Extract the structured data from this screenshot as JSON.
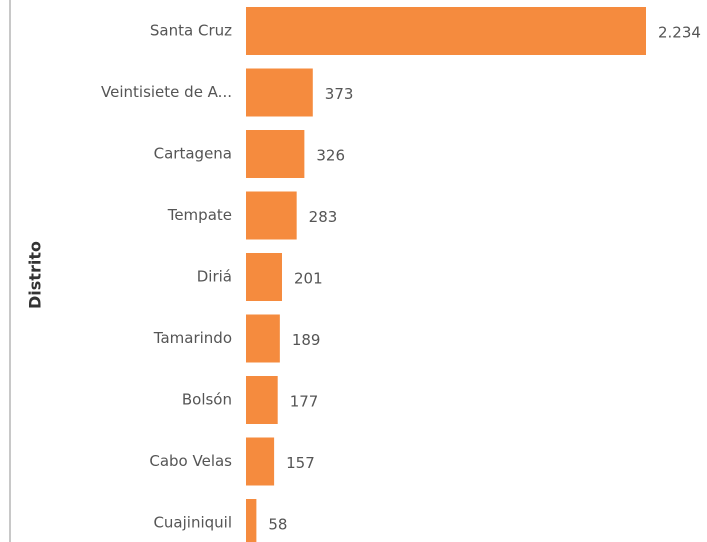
{
  "chart_data": {
    "type": "barh",
    "y_label": "Distrito",
    "categories": [
      "Santa Cruz",
      "Veintisiete de A...",
      "Cartagena",
      "Tempate",
      "Diriá",
      "Tamarindo",
      "Bolsón",
      "Cabo Velas",
      "Cuajiniquil"
    ],
    "values": [
      2234,
      373,
      326,
      283,
      201,
      189,
      177,
      157,
      58
    ],
    "value_labels": [
      "2.234",
      "373",
      "326",
      "283",
      "201",
      "189",
      "177",
      "157",
      "58"
    ],
    "color": "#f58b3e"
  }
}
